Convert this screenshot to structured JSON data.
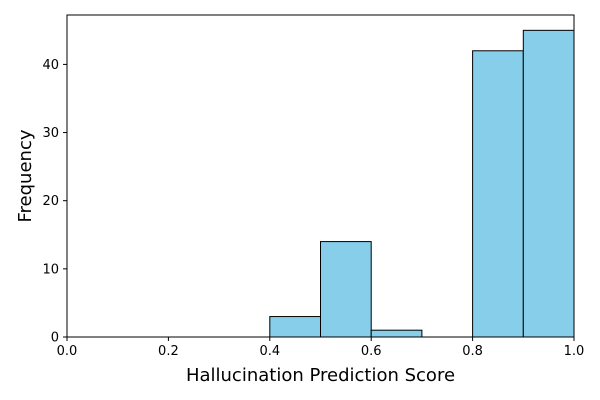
{
  "chart_data": {
    "type": "bar",
    "title": "",
    "xlabel": "Hallucination Prediction Score",
    "ylabel": "Frequency",
    "xlim": [
      0.0,
      1.0
    ],
    "ylim": [
      0,
      47.25
    ],
    "bins": [
      {
        "start": 0.4,
        "end": 0.5,
        "count": 3
      },
      {
        "start": 0.5,
        "end": 0.6,
        "count": 14
      },
      {
        "start": 0.6,
        "end": 0.7,
        "count": 1
      },
      {
        "start": 0.8,
        "end": 0.9,
        "count": 42
      },
      {
        "start": 0.9,
        "end": 1.0,
        "count": 45
      }
    ],
    "xticks": [
      {
        "value": 0.0,
        "label": "0.0"
      },
      {
        "value": 0.2,
        "label": "0.2"
      },
      {
        "value": 0.4,
        "label": "0.4"
      },
      {
        "value": 0.6,
        "label": "0.6"
      },
      {
        "value": 0.8,
        "label": "0.8"
      },
      {
        "value": 1.0,
        "label": "1.0"
      }
    ],
    "yticks": [
      {
        "value": 0,
        "label": "0"
      },
      {
        "value": 10,
        "label": "10"
      },
      {
        "value": 20,
        "label": "20"
      },
      {
        "value": 30,
        "label": "30"
      },
      {
        "value": 40,
        "label": "40"
      }
    ],
    "bar_color": "#87CEEB",
    "edge_color": "#000000",
    "grid": false,
    "legend": "none"
  }
}
